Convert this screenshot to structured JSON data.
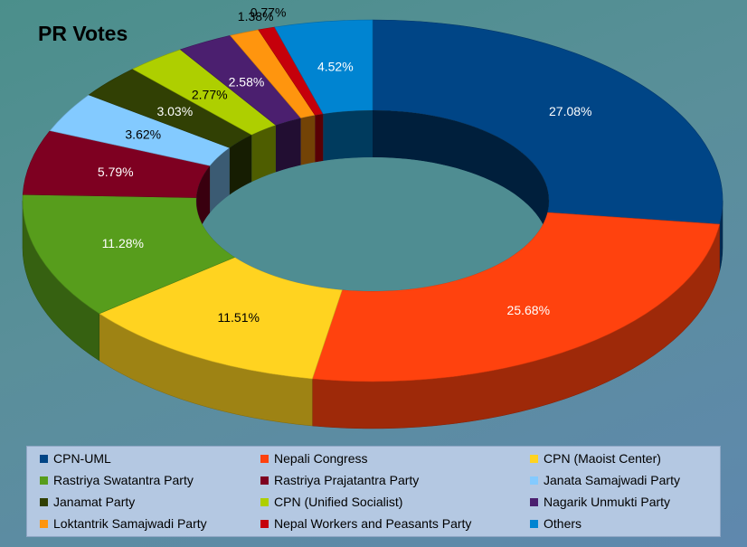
{
  "chart_data": {
    "type": "pie",
    "title": "PR Votes",
    "series": [
      {
        "name": "CPN-UML",
        "value": 27.08,
        "label": "27.08%",
        "color": "#004586"
      },
      {
        "name": "Nepali Congress",
        "value": 25.68,
        "label": "25.68%",
        "color": "#ff420e"
      },
      {
        "name": "CPN (Maoist Center)",
        "value": 11.51,
        "label": "11.51%",
        "color": "#ffd320"
      },
      {
        "name": "Rastriya Swatantra Party",
        "value": 11.28,
        "label": "11.28%",
        "color": "#579d1c"
      },
      {
        "name": "Rastriya Prajatantra Party",
        "value": 5.79,
        "label": "5.79%",
        "color": "#7e0021"
      },
      {
        "name": "Janata Samajwadi Party",
        "value": 3.62,
        "label": "3.62%",
        "color": "#83caff"
      },
      {
        "name": "Janamat Party",
        "value": 3.03,
        "label": "3.03%",
        "color": "#314004"
      },
      {
        "name": "CPN (Unified Socialist)",
        "value": 2.77,
        "label": "2.77%",
        "color": "#aecf00"
      },
      {
        "name": "Nagarik Unmukti Party",
        "value": 2.58,
        "label": "2.58%",
        "color": "#4b1f6f"
      },
      {
        "name": "Loktantrik Samajwadi Party",
        "value": 1.38,
        "label": "1.38%",
        "color": "#ff950e"
      },
      {
        "name": "Nepal Workers and Peasants Party",
        "value": 0.77,
        "label": "0.77%",
        "color": "#c5000b"
      },
      {
        "name": "Others",
        "value": 4.52,
        "label": "4.52%",
        "color": "#0084d1"
      }
    ],
    "legend_placement": "bottom",
    "style": "3d-donut"
  }
}
